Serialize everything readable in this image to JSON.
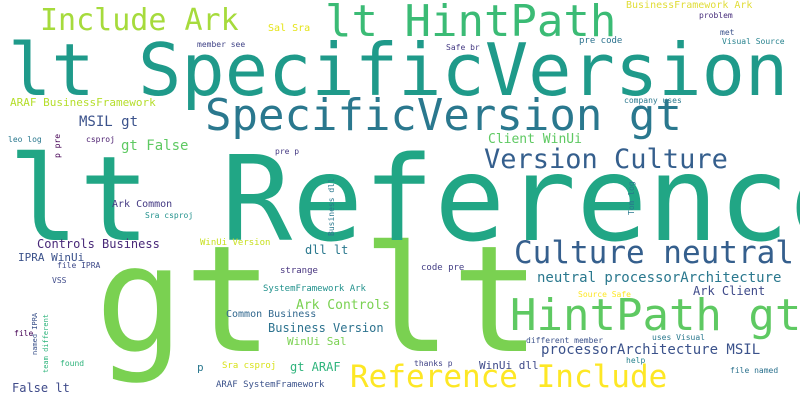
{
  "colors": {
    "background": "#ffffff",
    "lime": "#a6db3c",
    "green": "#7ad151",
    "bright_green": "#5ec962",
    "teal_green": "#2fb47c",
    "teal": "#21a685",
    "teal_dark": "#1f9a8a",
    "cyan": "#26828e",
    "blue_teal": "#2a788e",
    "blue": "#355f8d",
    "indigo": "#3b528b",
    "purple": "#440154",
    "yellow": "#fde725",
    "gold": "#e1dd37"
  },
  "words": [
    {
      "text": "gt lt",
      "color": "#7ad151"
    },
    {
      "text": "lt Reference",
      "color": "#21a685"
    },
    {
      "text": "lt SpecificVersion",
      "color": "#1f9a8a"
    },
    {
      "text": "SpecificVersion gt",
      "color": "#2a788e"
    },
    {
      "text": "lt HintPath",
      "color": "#3bbb75"
    },
    {
      "text": "Include Ark",
      "color": "#a6db3c"
    },
    {
      "text": "HintPath gt",
      "color": "#5ec962"
    },
    {
      "text": "Culture neutral",
      "color": "#355f8d"
    },
    {
      "text": "Version Culture",
      "color": "#355f8d"
    },
    {
      "text": "Reference Include",
      "color": "#fde725"
    },
    {
      "text": "neutral processorArchitecture",
      "color": "#2a788e"
    },
    {
      "text": "processorArchitecture MSIL",
      "color": "#3b528b"
    },
    {
      "text": "MSIL gt",
      "color": "#3b528b"
    },
    {
      "text": "gt False",
      "color": "#5ec962"
    },
    {
      "text": "Client WinUi",
      "color": "#5ec962"
    },
    {
      "text": "Controls Business",
      "color": "#482878"
    },
    {
      "text": "Ark Controls",
      "color": "#7ad151"
    },
    {
      "text": "Business Version",
      "color": "#2c728e"
    },
    {
      "text": "Ark Client",
      "color": "#3e4a89"
    },
    {
      "text": "ARAF BusinessFramework",
      "color": "#b5de2b"
    },
    {
      "text": "BusinessFramework Ark",
      "color": "#e1dd37"
    },
    {
      "text": "Sal Sra",
      "color": "#e5e419"
    },
    {
      "text": "dll lt",
      "color": "#2a788e"
    },
    {
      "text": "IPRA WinUi",
      "color": "#3b528b"
    },
    {
      "text": "gt ARAF",
      "color": "#2fb47c"
    },
    {
      "text": "WinUi Sal",
      "color": "#7ad151"
    },
    {
      "text": "False lt",
      "color": "#3e4a89"
    },
    {
      "text": "WinUi dll",
      "color": "#3e4a89"
    },
    {
      "text": "Ark Common",
      "color": "#443a83"
    },
    {
      "text": "Common Business",
      "color": "#31688e"
    },
    {
      "text": "SystemFramework Ark",
      "color": "#21918c"
    },
    {
      "text": "ARAF SystemFramework",
      "color": "#3b528b"
    },
    {
      "text": "WinUi Version",
      "color": "#c8e020"
    },
    {
      "text": "Sra csproj",
      "color": "#d8e219"
    },
    {
      "text": "code pre",
      "color": "#433e85"
    },
    {
      "text": "pre code",
      "color": "#2c728e"
    },
    {
      "text": "strange",
      "color": "#46337e"
    },
    {
      "text": "member see",
      "color": "#414487"
    },
    {
      "text": "Safe br",
      "color": "#443983"
    },
    {
      "text": "problem",
      "color": "#472d7b"
    },
    {
      "text": "met",
      "color": "#3b528b"
    },
    {
      "text": "Visual Source",
      "color": "#26828e"
    },
    {
      "text": "company uses",
      "color": "#2a788e"
    },
    {
      "text": "leo log",
      "color": "#2a788e"
    },
    {
      "text": "csproj",
      "color": "#481b6d"
    },
    {
      "text": "pre p",
      "color": "#443983"
    },
    {
      "text": "Sra csproj",
      "color": "#21918c"
    },
    {
      "text": "file IPRA",
      "color": "#3e4a89"
    },
    {
      "text": "VSS",
      "color": "#3e4a89"
    },
    {
      "text": "file",
      "color": "#440154"
    },
    {
      "text": "found",
      "color": "#2fb47c"
    },
    {
      "text": "thanks p",
      "color": "#414487"
    },
    {
      "text": "different member",
      "color": "#3b528b"
    },
    {
      "text": "uses Visual",
      "color": "#2a788e"
    },
    {
      "text": "help",
      "color": "#26828e"
    },
    {
      "text": "file named",
      "color": "#2c728e"
    },
    {
      "text": "Source Safe",
      "color": "#fde725"
    },
    {
      "text": "p",
      "color": "#2a788e"
    },
    {
      "text": "p pre",
      "color": "#440154"
    },
    {
      "text": "Business dll",
      "color": "#2a788e"
    },
    {
      "text": "Tom log",
      "color": "#2a788e"
    },
    {
      "text": "named IPRA",
      "color": "#3b528b"
    },
    {
      "text": "team different",
      "color": "#2fb47c"
    }
  ]
}
